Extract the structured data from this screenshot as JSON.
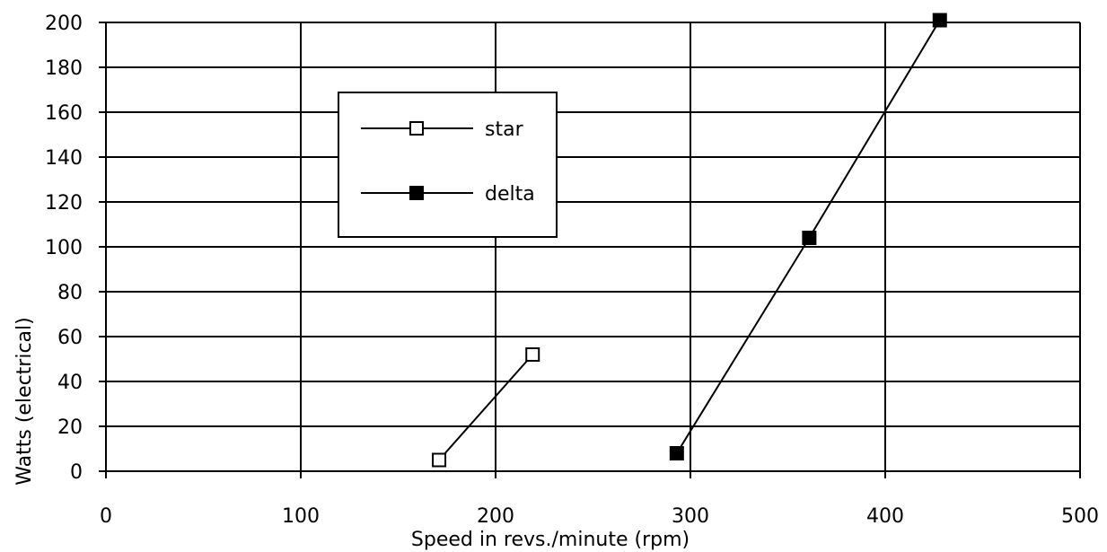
{
  "chart_data": {
    "type": "line",
    "title": "",
    "xlabel": "Speed in revs./minute (rpm)",
    "ylabel": "Watts (electrical)",
    "xlim": [
      0,
      500
    ],
    "ylim": [
      0,
      200
    ],
    "xticks": [
      0,
      100,
      200,
      300,
      400,
      500
    ],
    "yticks": [
      0,
      20,
      40,
      60,
      80,
      100,
      120,
      140,
      160,
      180,
      200
    ],
    "grid": true,
    "legend_position": "upper-left inside plot",
    "series": [
      {
        "name": "star",
        "marker": "open-square",
        "points": [
          {
            "x": 171,
            "y": 5
          },
          {
            "x": 219,
            "y": 52
          }
        ]
      },
      {
        "name": "delta",
        "marker": "filled-square",
        "points": [
          {
            "x": 293,
            "y": 8
          },
          {
            "x": 361,
            "y": 104
          },
          {
            "x": 428,
            "y": 201
          }
        ]
      }
    ]
  },
  "colors": {
    "line": "#000000",
    "grid": "#000000",
    "background": "#ffffff"
  }
}
